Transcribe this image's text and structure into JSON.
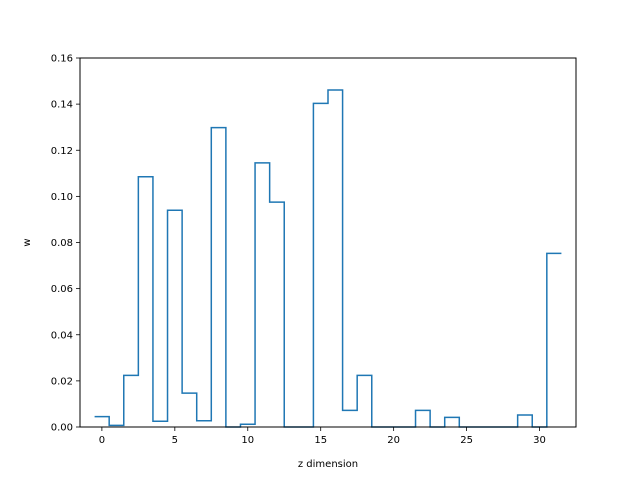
{
  "chart_data": {
    "type": "line",
    "style": "step",
    "xlabel": "z dimension",
    "ylabel": "w",
    "xlim": [
      -1.5,
      32.5
    ],
    "ylim": [
      0,
      0.16
    ],
    "xticks": [
      0,
      5,
      10,
      15,
      20,
      25,
      30
    ],
    "yticks": [
      0.0,
      0.02,
      0.04,
      0.06,
      0.08,
      0.1,
      0.12,
      0.14,
      0.16
    ],
    "xtick_labels": [
      "0",
      "5",
      "10",
      "15",
      "20",
      "25",
      "30"
    ],
    "ytick_labels": [
      "0.00",
      "0.02",
      "0.04",
      "0.06",
      "0.08",
      "0.10",
      "0.12",
      "0.14",
      "0.16"
    ],
    "grid": false,
    "color": "#1f77b4",
    "x": [
      0,
      1,
      2,
      3,
      4,
      5,
      6,
      7,
      8,
      9,
      10,
      11,
      12,
      13,
      14,
      15,
      16,
      17,
      18,
      19,
      20,
      21,
      22,
      23,
      24,
      25,
      26,
      27,
      28,
      29,
      30,
      31
    ],
    "y": [
      0.0045,
      0.0007,
      0.0224,
      0.1085,
      0.0025,
      0.094,
      0.0147,
      0.0027,
      0.1298,
      0.0,
      0.0012,
      0.1145,
      0.0975,
      0.0,
      0.0,
      0.1403,
      0.1461,
      0.0072,
      0.0224,
      0.0,
      0.0,
      0.0,
      0.0072,
      0.0,
      0.0042,
      0.0,
      0.0,
      0.0,
      0.0,
      0.0052,
      0.0,
      0.0753
    ]
  }
}
